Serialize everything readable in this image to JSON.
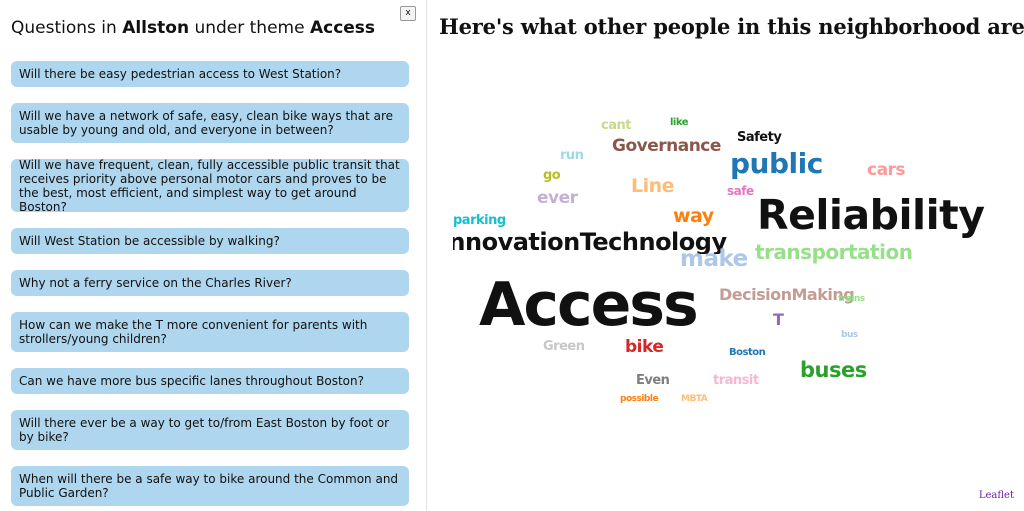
{
  "panel": {
    "title_prefix": "Questions in ",
    "neighborhood": "Allston",
    "title_middle": " under theme ",
    "theme": "Access",
    "close_label": "x",
    "questions": [
      "Will there be easy pedestrian access to West Station?",
      "Will we have a network of safe, easy, clean bike ways that are usable by young and old, and everyone in between?",
      "Will we have frequent, clean, fully accessible public transit that receives priority above personal motor cars and proves to be the best, most efficient, and simplest way to get around Boston?",
      "Will West Station be accessible by walking?",
      "Why not a ferry service on the Charles River?",
      "How can we make the T more convenient for parents with strollers/young children?",
      "Can we have more bus specific lanes throughout Boston?",
      "Will there ever be a way to get to/from East Boston by foot or by bike?",
      "When will there be a safe way to bike around the Common and Public Garden?"
    ]
  },
  "cloud": {
    "title": "Here's what other people in this neighborhood are saying:",
    "words": [
      {
        "text": "cant",
        "color": "#c7d98a"
      },
      {
        "text": "like",
        "color": "#2ca02c"
      },
      {
        "text": "Safety",
        "color": "#111111"
      },
      {
        "text": "Governance",
        "color": "#8c564b"
      },
      {
        "text": "run",
        "color": "#9edae5"
      },
      {
        "text": "public",
        "color": "#1f77b4"
      },
      {
        "text": "cars",
        "color": "#ff9896"
      },
      {
        "text": "go",
        "color": "#bcbd22"
      },
      {
        "text": "Line",
        "color": "#ffbb78"
      },
      {
        "text": "safe",
        "color": "#e377c2"
      },
      {
        "text": "ever",
        "color": "#c5b0d5"
      },
      {
        "text": "way",
        "color": "#ff7f0e"
      },
      {
        "text": "Reliability",
        "color": "#111111"
      },
      {
        "text": "parking",
        "color": "#17becf"
      },
      {
        "text": "InnovationTechnology",
        "color": "#111111"
      },
      {
        "text": "make",
        "color": "#aec7e8"
      },
      {
        "text": "transportation",
        "color": "#98df8a"
      },
      {
        "text": "Access",
        "color": "#111111"
      },
      {
        "text": "DecisionMaking",
        "color": "#c49c94"
      },
      {
        "text": "trains",
        "color": "#98df8a"
      },
      {
        "text": "T",
        "color": "#9467bd"
      },
      {
        "text": "bus",
        "color": "#aec7e8"
      },
      {
        "text": "Green",
        "color": "#c7c7c7"
      },
      {
        "text": "bike",
        "color": "#d62728"
      },
      {
        "text": "Boston",
        "color": "#1f77b4"
      },
      {
        "text": "buses",
        "color": "#2ca02c"
      },
      {
        "text": "Even",
        "color": "#7f7f7f"
      },
      {
        "text": "transit",
        "color": "#f7b6d2"
      },
      {
        "text": "possible",
        "color": "#ff7f0e"
      },
      {
        "text": "MBTA",
        "color": "#ffbb78"
      }
    ]
  },
  "map": {
    "attribution": "Leaflet"
  }
}
